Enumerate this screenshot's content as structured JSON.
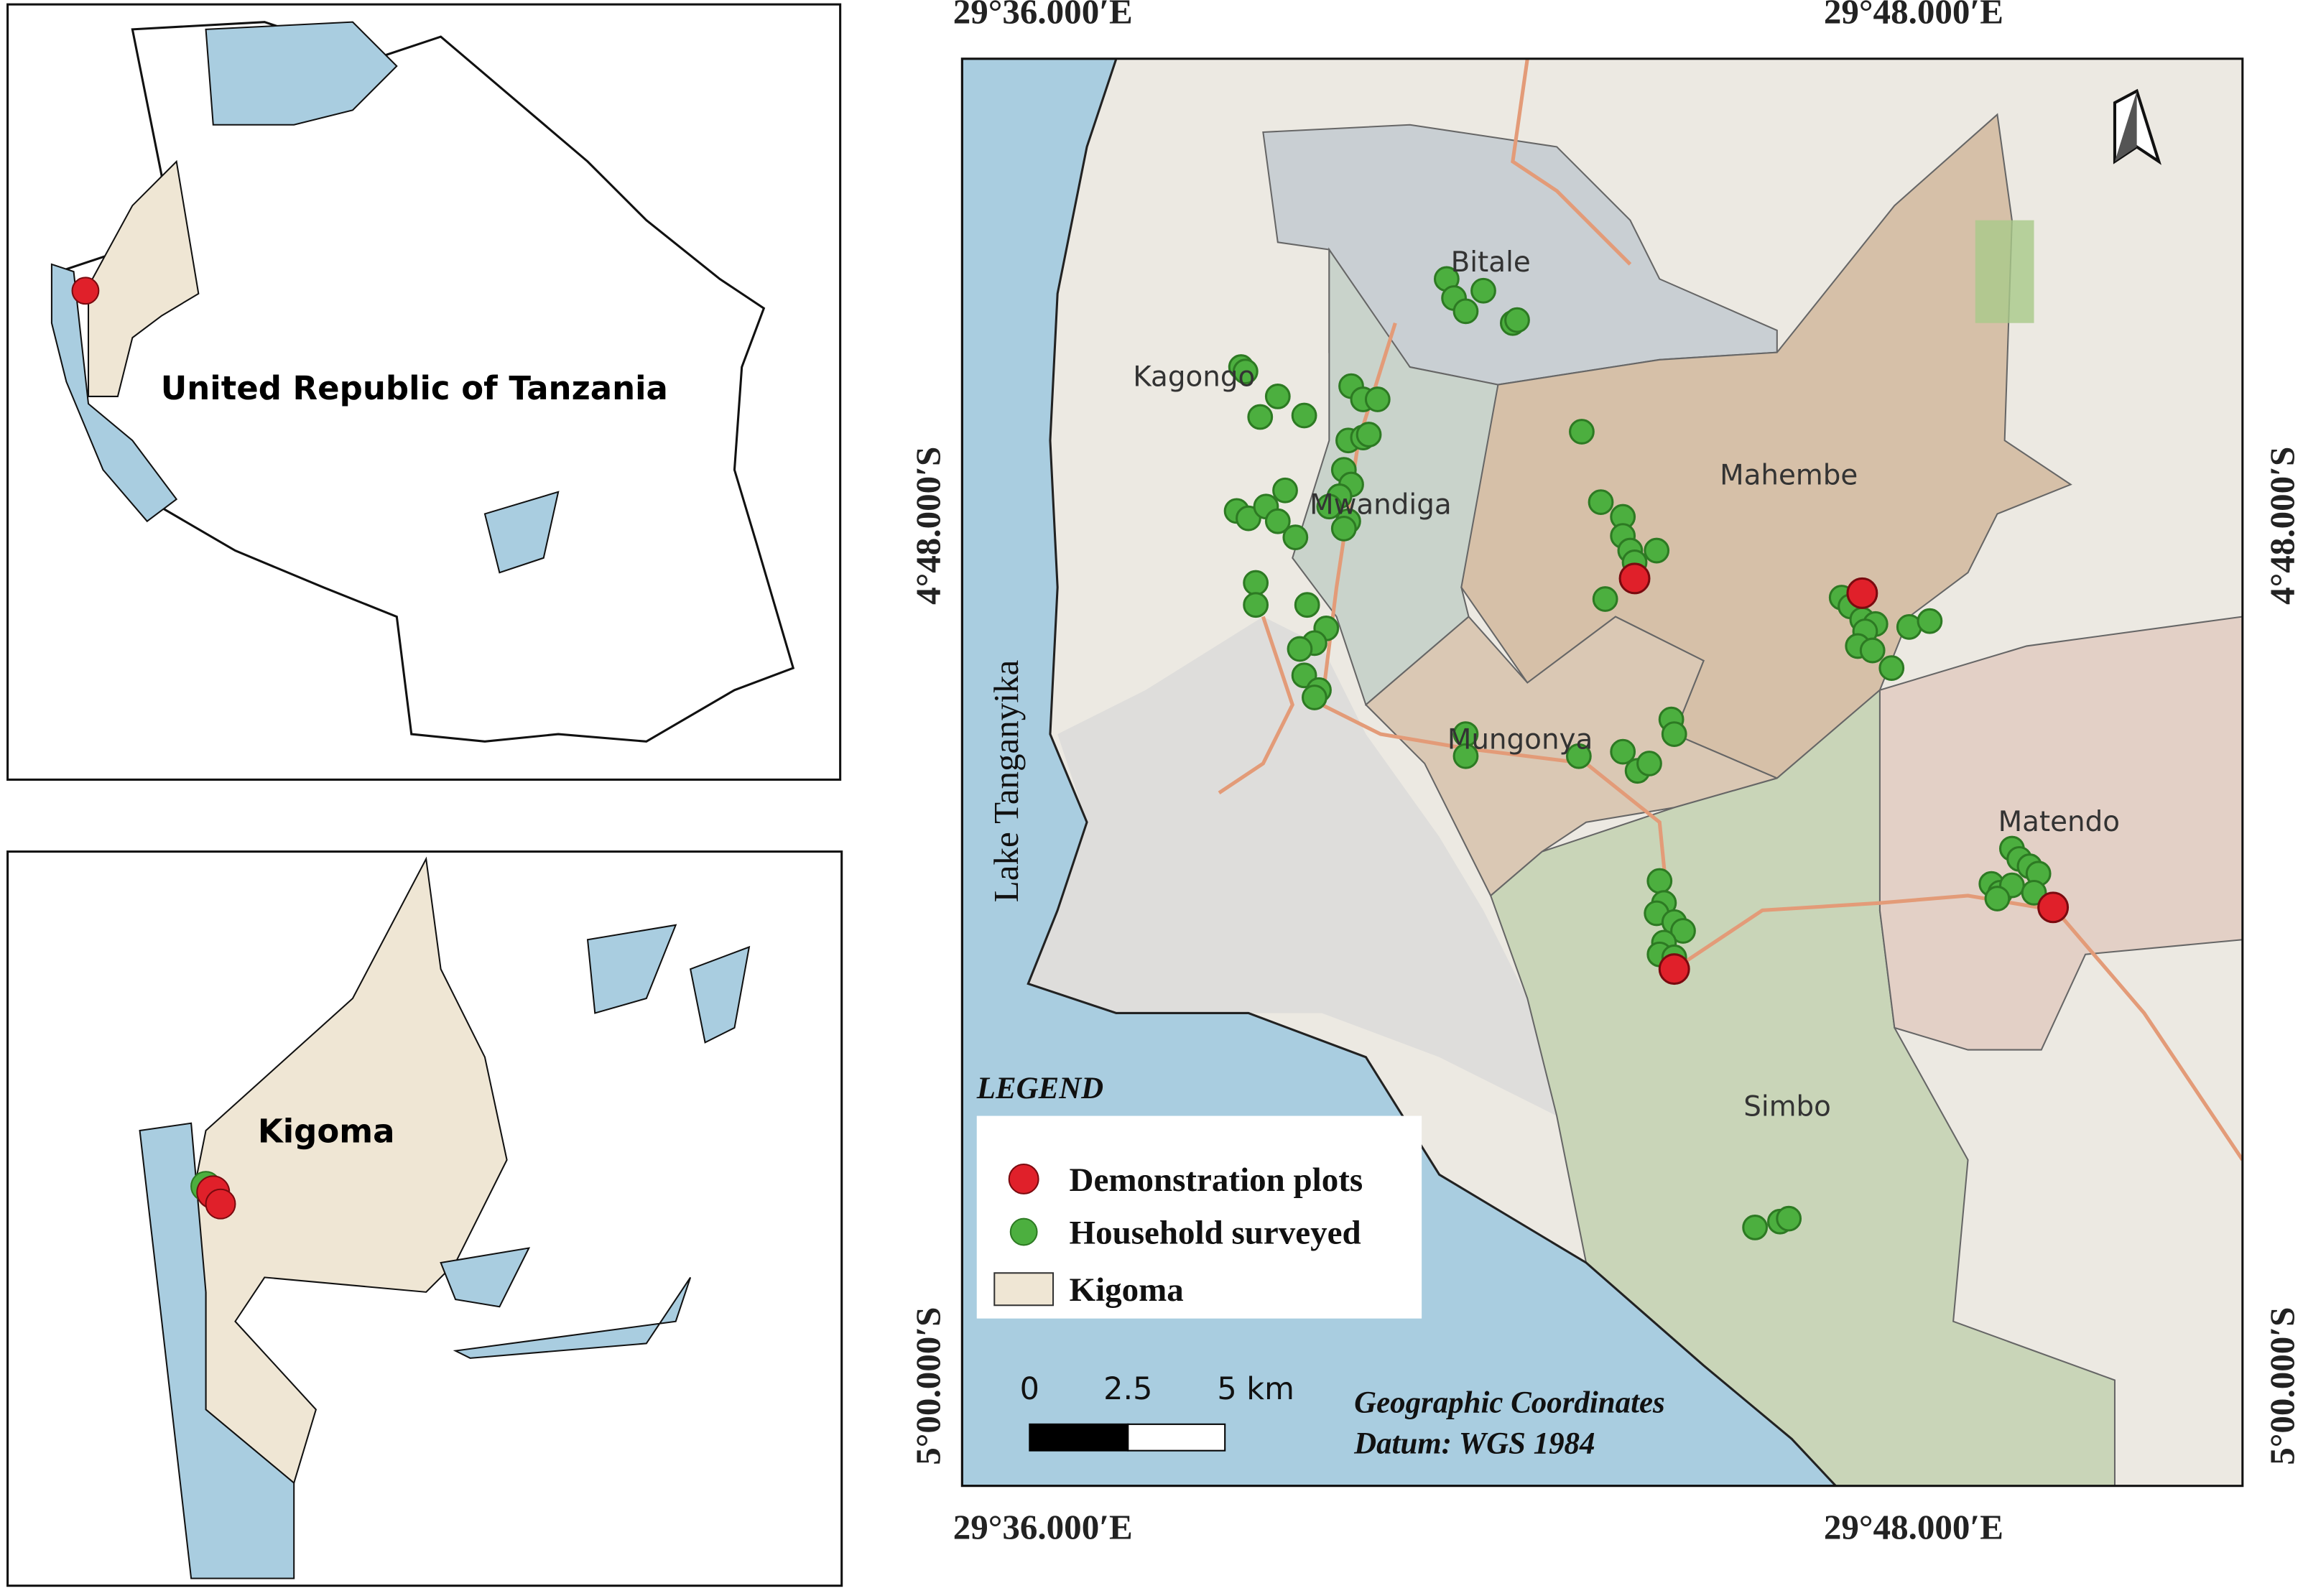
{
  "insets": [
    {
      "title": "United Republic of Tanzania"
    },
    {
      "title": "Kigoma"
    }
  ],
  "main_map": {
    "lon_labels": [
      "29°36.000′E",
      "29°48.000′E"
    ],
    "lat_labels": [
      "4°48.000′S",
      "5°00.000′S"
    ],
    "lake": "Lake Tanganyika",
    "places": [
      "Bitale",
      "Kagongo",
      "Mwandiga",
      "Mahembe",
      "Mungonya",
      "Matendo",
      "Simbo"
    ]
  },
  "legend": {
    "title": "LEGEND",
    "items": [
      "Demonstration plots",
      "Household surveyed",
      "Kigoma"
    ]
  },
  "scale_bar": {
    "labels": [
      "0",
      "2.5",
      "5 km"
    ]
  },
  "notes": [
    "Geographic Coordinates",
    "Datum: WGS 1984"
  ]
}
